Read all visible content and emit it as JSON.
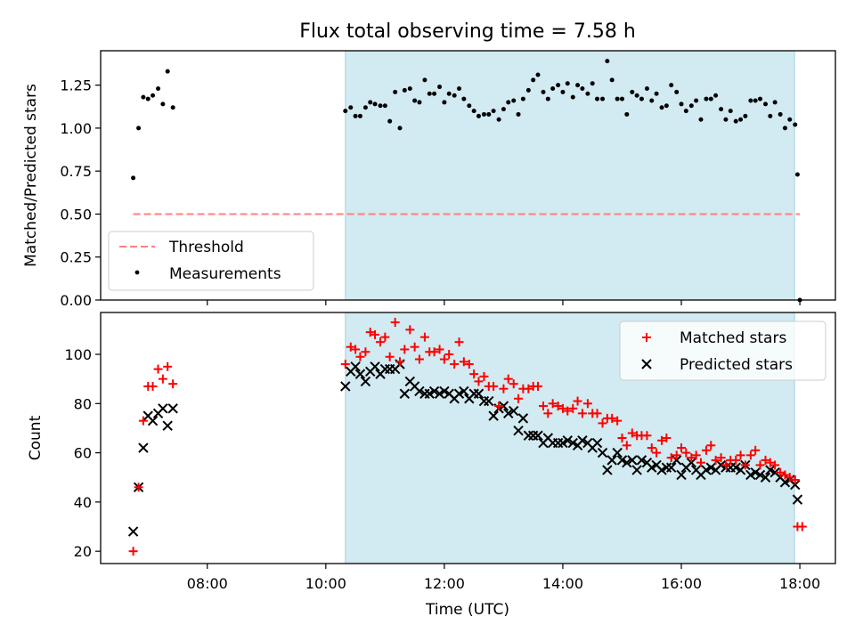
{
  "chart_data": {
    "type": "scatter",
    "title": "Flux total observing time = 7.58 h",
    "colors": {
      "threshold": "#ff7f7f",
      "measurements": "#000000",
      "matched": "#ff0000",
      "predicted": "#000000",
      "observing_span": "#add8e6"
    },
    "x_unit": "hours UTC",
    "xlim": [
      6.2,
      18.6
    ],
    "xlabel": "Time (UTC)",
    "x_ticks": [
      8,
      10,
      12,
      14,
      16,
      18
    ],
    "x_tick_labels": [
      "08:00",
      "10:00",
      "12:00",
      "14:00",
      "16:00",
      "18:00"
    ],
    "observing_span": [
      10.33,
      17.91
    ],
    "top": {
      "ylabel": "Matched/Predicted stars",
      "ylim": [
        0,
        1.45
      ],
      "y_ticks": [
        0.0,
        0.25,
        0.5,
        0.75,
        1.0,
        1.25
      ],
      "y_tick_labels": [
        "0.00",
        "0.25",
        "0.50",
        "0.75",
        "1.00",
        "1.25"
      ],
      "legend": {
        "threshold": "Threshold",
        "measurements": "Measurements",
        "position": "lower left"
      },
      "threshold": {
        "x": [
          6.75,
          18.0
        ],
        "y": 0.5
      },
      "measurements": [
        [
          6.75,
          0.71
        ],
        [
          6.84,
          1.0
        ],
        [
          6.92,
          1.18
        ],
        [
          7.0,
          1.17
        ],
        [
          7.08,
          1.19
        ],
        [
          7.17,
          1.23
        ],
        [
          7.25,
          1.14
        ],
        [
          7.33,
          1.33
        ],
        [
          7.42,
          1.12
        ],
        [
          10.33,
          1.1
        ],
        [
          10.42,
          1.12
        ],
        [
          10.5,
          1.07
        ],
        [
          10.58,
          1.07
        ],
        [
          10.67,
          1.12
        ],
        [
          10.75,
          1.15
        ],
        [
          10.83,
          1.14
        ],
        [
          10.92,
          1.13
        ],
        [
          11.0,
          1.13
        ],
        [
          11.08,
          1.04
        ],
        [
          11.17,
          1.21
        ],
        [
          11.25,
          1.0
        ],
        [
          11.33,
          1.22
        ],
        [
          11.42,
          1.23
        ],
        [
          11.5,
          1.16
        ],
        [
          11.58,
          1.15
        ],
        [
          11.67,
          1.28
        ],
        [
          11.75,
          1.2
        ],
        [
          11.83,
          1.2
        ],
        [
          11.92,
          1.24
        ],
        [
          12.0,
          1.15
        ],
        [
          12.08,
          1.2
        ],
        [
          12.17,
          1.19
        ],
        [
          12.25,
          1.23
        ],
        [
          12.33,
          1.17
        ],
        [
          12.42,
          1.13
        ],
        [
          12.5,
          1.1
        ],
        [
          12.58,
          1.07
        ],
        [
          12.67,
          1.08
        ],
        [
          12.75,
          1.08
        ],
        [
          12.83,
          1.1
        ],
        [
          12.92,
          1.05
        ],
        [
          13.0,
          1.11
        ],
        [
          13.08,
          1.15
        ],
        [
          13.17,
          1.16
        ],
        [
          13.25,
          1.08
        ],
        [
          13.33,
          1.17
        ],
        [
          13.42,
          1.22
        ],
        [
          13.5,
          1.28
        ],
        [
          13.58,
          1.31
        ],
        [
          13.67,
          1.21
        ],
        [
          13.75,
          1.17
        ],
        [
          13.83,
          1.23
        ],
        [
          13.92,
          1.25
        ],
        [
          14.0,
          1.21
        ],
        [
          14.08,
          1.26
        ],
        [
          14.17,
          1.18
        ],
        [
          14.25,
          1.25
        ],
        [
          14.33,
          1.23
        ],
        [
          14.42,
          1.2
        ],
        [
          14.5,
          1.26
        ],
        [
          14.58,
          1.17
        ],
        [
          14.67,
          1.17
        ],
        [
          14.75,
          1.39
        ],
        [
          14.83,
          1.28
        ],
        [
          14.92,
          1.17
        ],
        [
          15.0,
          1.17
        ],
        [
          15.08,
          1.08
        ],
        [
          15.17,
          1.21
        ],
        [
          15.25,
          1.19
        ],
        [
          15.33,
          1.17
        ],
        [
          15.42,
          1.23
        ],
        [
          15.5,
          1.16
        ],
        [
          15.58,
          1.2
        ],
        [
          15.67,
          1.12
        ],
        [
          15.75,
          1.13
        ],
        [
          15.83,
          1.25
        ],
        [
          15.92,
          1.21
        ],
        [
          16.0,
          1.14
        ],
        [
          16.08,
          1.1
        ],
        [
          16.17,
          1.13
        ],
        [
          16.25,
          1.16
        ],
        [
          16.33,
          1.05
        ],
        [
          16.42,
          1.17
        ],
        [
          16.5,
          1.17
        ],
        [
          16.58,
          1.19
        ],
        [
          16.67,
          1.11
        ],
        [
          16.75,
          1.05
        ],
        [
          16.83,
          1.1
        ],
        [
          16.92,
          1.04
        ],
        [
          17.0,
          1.05
        ],
        [
          17.08,
          1.07
        ],
        [
          17.17,
          1.16
        ],
        [
          17.25,
          1.16
        ],
        [
          17.33,
          1.17
        ],
        [
          17.42,
          1.14
        ],
        [
          17.5,
          1.07
        ],
        [
          17.58,
          1.15
        ],
        [
          17.67,
          1.08
        ],
        [
          17.75,
          1.0
        ],
        [
          17.83,
          1.05
        ],
        [
          17.92,
          1.02
        ],
        [
          17.96,
          0.73
        ],
        [
          18.0,
          0.0
        ]
      ]
    },
    "bottom": {
      "ylabel": "Count",
      "ylim": [
        15,
        117
      ],
      "y_ticks": [
        20,
        40,
        60,
        80,
        100
      ],
      "y_tick_labels": [
        "20",
        "40",
        "60",
        "80",
        "100"
      ],
      "legend": {
        "matched": "Matched stars",
        "predicted": "Predicted stars",
        "position": "upper right"
      },
      "matched": [
        [
          6.75,
          20
        ],
        [
          6.84,
          46
        ],
        [
          6.92,
          73
        ],
        [
          7.0,
          87
        ],
        [
          7.08,
          87
        ],
        [
          7.17,
          94
        ],
        [
          7.25,
          90
        ],
        [
          7.33,
          95
        ],
        [
          7.42,
          88
        ],
        [
          10.33,
          96
        ],
        [
          10.42,
          103
        ],
        [
          10.5,
          102
        ],
        [
          10.58,
          99
        ],
        [
          10.67,
          101
        ],
        [
          10.75,
          109
        ],
        [
          10.83,
          108
        ],
        [
          10.92,
          105
        ],
        [
          11.0,
          107
        ],
        [
          11.08,
          99
        ],
        [
          11.17,
          113
        ],
        [
          11.25,
          97
        ],
        [
          11.33,
          102
        ],
        [
          11.42,
          110
        ],
        [
          11.5,
          103
        ],
        [
          11.58,
          98
        ],
        [
          11.67,
          107
        ],
        [
          11.75,
          101
        ],
        [
          11.83,
          101
        ],
        [
          11.92,
          102
        ],
        [
          12.0,
          98
        ],
        [
          12.08,
          100
        ],
        [
          12.17,
          96
        ],
        [
          12.25,
          105
        ],
        [
          12.33,
          97
        ],
        [
          12.42,
          96
        ],
        [
          12.5,
          92
        ],
        [
          12.58,
          89
        ],
        [
          12.67,
          91
        ],
        [
          12.75,
          87
        ],
        [
          12.83,
          87
        ],
        [
          12.92,
          79
        ],
        [
          13.0,
          86
        ],
        [
          13.08,
          90
        ],
        [
          13.17,
          88
        ],
        [
          13.25,
          82
        ],
        [
          13.33,
          86
        ],
        [
          13.42,
          86
        ],
        [
          13.5,
          87
        ],
        [
          13.58,
          87
        ],
        [
          13.67,
          79
        ],
        [
          13.75,
          76
        ],
        [
          13.83,
          80
        ],
        [
          13.92,
          79
        ],
        [
          14.0,
          78
        ],
        [
          14.08,
          77
        ],
        [
          14.17,
          78
        ],
        [
          14.25,
          81
        ],
        [
          14.33,
          76
        ],
        [
          14.42,
          80
        ],
        [
          14.5,
          76
        ],
        [
          14.58,
          76
        ],
        [
          14.67,
          72
        ],
        [
          14.75,
          74
        ],
        [
          14.83,
          74
        ],
        [
          14.92,
          73
        ],
        [
          15.0,
          66
        ],
        [
          15.08,
          63
        ],
        [
          15.17,
          68
        ],
        [
          15.25,
          67
        ],
        [
          15.33,
          67
        ],
        [
          15.42,
          67
        ],
        [
          15.5,
          62
        ],
        [
          15.58,
          60
        ],
        [
          15.67,
          65
        ],
        [
          15.75,
          66
        ],
        [
          15.83,
          58
        ],
        [
          15.92,
          59
        ],
        [
          16.0,
          62
        ],
        [
          16.08,
          60
        ],
        [
          16.17,
          58
        ],
        [
          16.25,
          59
        ],
        [
          16.33,
          56
        ],
        [
          16.42,
          61
        ],
        [
          16.5,
          63
        ],
        [
          16.58,
          57
        ],
        [
          16.67,
          58
        ],
        [
          16.75,
          55
        ],
        [
          16.83,
          57
        ],
        [
          16.92,
          57
        ],
        [
          17.0,
          59
        ],
        [
          17.08,
          55
        ],
        [
          17.17,
          59
        ],
        [
          17.25,
          61
        ],
        [
          17.33,
          55
        ],
        [
          17.42,
          57
        ],
        [
          17.5,
          56
        ],
        [
          17.58,
          55
        ],
        [
          17.67,
          52
        ],
        [
          17.75,
          51
        ],
        [
          17.83,
          50
        ],
        [
          17.92,
          49
        ],
        [
          17.96,
          30
        ],
        [
          18.04,
          30
        ]
      ],
      "predicted": [
        [
          6.75,
          28
        ],
        [
          6.84,
          46
        ],
        [
          6.92,
          62
        ],
        [
          7.0,
          75
        ],
        [
          7.08,
          73
        ],
        [
          7.17,
          76
        ],
        [
          7.25,
          78
        ],
        [
          7.33,
          71
        ],
        [
          7.42,
          78
        ],
        [
          10.33,
          87
        ],
        [
          10.42,
          93
        ],
        [
          10.5,
          95
        ],
        [
          10.58,
          92
        ],
        [
          10.67,
          89
        ],
        [
          10.75,
          93
        ],
        [
          10.83,
          95
        ],
        [
          10.92,
          92
        ],
        [
          11.0,
          94
        ],
        [
          11.08,
          94
        ],
        [
          11.17,
          94
        ],
        [
          11.25,
          96
        ],
        [
          11.33,
          84
        ],
        [
          11.42,
          89
        ],
        [
          11.5,
          87
        ],
        [
          11.58,
          85
        ],
        [
          11.67,
          84
        ],
        [
          11.75,
          84
        ],
        [
          11.83,
          85
        ],
        [
          11.92,
          84
        ],
        [
          12.0,
          85
        ],
        [
          12.08,
          84
        ],
        [
          12.17,
          82
        ],
        [
          12.25,
          84
        ],
        [
          12.33,
          85
        ],
        [
          12.42,
          82
        ],
        [
          12.5,
          84
        ],
        [
          12.58,
          84
        ],
        [
          12.67,
          81
        ],
        [
          12.75,
          81
        ],
        [
          12.83,
          75
        ],
        [
          12.92,
          78
        ],
        [
          13.0,
          79
        ],
        [
          13.08,
          76
        ],
        [
          13.17,
          77
        ],
        [
          13.25,
          69
        ],
        [
          13.33,
          74
        ],
        [
          13.42,
          67
        ],
        [
          13.5,
          67
        ],
        [
          13.58,
          67
        ],
        [
          13.67,
          64
        ],
        [
          13.75,
          66
        ],
        [
          13.83,
          64
        ],
        [
          13.92,
          64
        ],
        [
          14.0,
          64
        ],
        [
          14.08,
          65
        ],
        [
          14.17,
          64
        ],
        [
          14.25,
          63
        ],
        [
          14.33,
          65
        ],
        [
          14.42,
          64
        ],
        [
          14.5,
          62
        ],
        [
          14.58,
          64
        ],
        [
          14.67,
          60
        ],
        [
          14.75,
          53
        ],
        [
          14.83,
          57
        ],
        [
          14.92,
          60
        ],
        [
          15.0,
          57
        ],
        [
          15.08,
          56
        ],
        [
          15.17,
          57
        ],
        [
          15.25,
          53
        ],
        [
          15.33,
          57
        ],
        [
          15.42,
          56
        ],
        [
          15.5,
          54
        ],
        [
          15.58,
          55
        ],
        [
          15.67,
          53
        ],
        [
          15.75,
          54
        ],
        [
          15.83,
          54
        ],
        [
          15.92,
          57
        ],
        [
          16.0,
          51
        ],
        [
          16.08,
          54
        ],
        [
          16.17,
          56
        ],
        [
          16.25,
          53
        ],
        [
          16.33,
          51
        ],
        [
          16.42,
          53
        ],
        [
          16.5,
          54
        ],
        [
          16.58,
          53
        ],
        [
          16.67,
          55
        ],
        [
          16.75,
          54
        ],
        [
          16.83,
          54
        ],
        [
          16.92,
          54
        ],
        [
          17.0,
          53
        ],
        [
          17.08,
          55
        ],
        [
          17.17,
          51
        ],
        [
          17.25,
          52
        ],
        [
          17.33,
          51
        ],
        [
          17.42,
          50
        ],
        [
          17.5,
          53
        ],
        [
          17.58,
          52
        ],
        [
          17.67,
          50
        ],
        [
          17.75,
          48
        ],
        [
          17.83,
          49
        ],
        [
          17.92,
          47
        ],
        [
          17.96,
          41
        ]
      ]
    }
  }
}
